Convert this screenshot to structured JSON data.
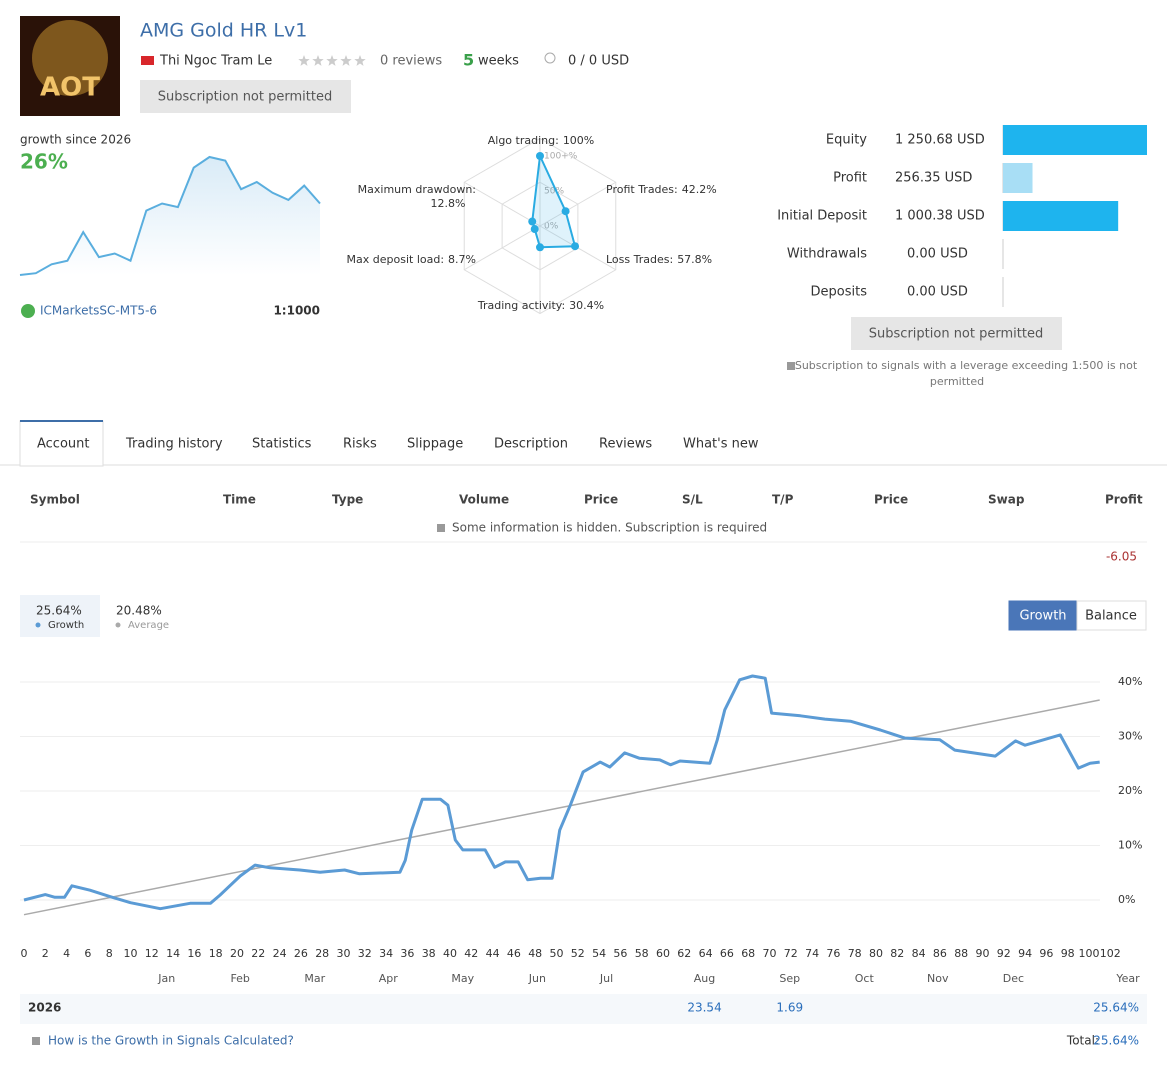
{
  "header": {
    "avatar_text": "AOT",
    "title": "AMG Gold HR Lv1",
    "author": "Thi Ngoc Tram Le",
    "reviews": "0 reviews",
    "weeks_value": "5",
    "weeks_unit": "weeks",
    "subscribers": "0 / 0 USD",
    "button": "Subscription not permitted"
  },
  "mini": {
    "label": "growth since 2026",
    "value": "26%",
    "values": [
      0,
      0.5,
      3,
      4,
      12,
      5,
      6,
      4,
      18,
      20,
      19,
      30,
      33,
      32,
      24,
      26,
      23,
      21,
      25,
      20
    ],
    "broker": "ICMarketsSC-MT5-6",
    "leverage": "1:1000"
  },
  "radar": {
    "axes": [
      {
        "name": "Algo trading:",
        "value": 100,
        "value_label": "100%"
      },
      {
        "name": "Profit Trades:",
        "value": 42.2,
        "value_label": "42.2%"
      },
      {
        "name": "Loss Trades:",
        "value": 57.8,
        "value_label": "57.8%"
      },
      {
        "name": "Trading activity:",
        "value": 30.4,
        "value_label": "30.4%"
      },
      {
        "name": "Max deposit load:",
        "value": 8.7,
        "value_label": "8.7%"
      },
      {
        "name": "Maximum drawdown:",
        "value": 12.8,
        "value_label": "12.8%"
      }
    ],
    "rings": [
      {
        "value": 100,
        "label": "100+%"
      },
      {
        "value": 50,
        "label": "50%"
      },
      {
        "value": 0,
        "label": "0%"
      }
    ]
  },
  "account": {
    "rows": [
      {
        "label": "Equity",
        "value": 1250.68,
        "value_label": "1 250.68 USD"
      },
      {
        "label": "Profit",
        "value": 256.35,
        "value_label": "256.35 USD"
      },
      {
        "label": "Initial Deposit",
        "value": 1000.38,
        "value_label": "1 000.38 USD"
      },
      {
        "label": "Withdrawals",
        "value": 0,
        "value_label": "0.00 USD"
      },
      {
        "label": "Deposits",
        "value": 0,
        "value_label": "0.00 USD"
      }
    ],
    "button": "Subscription not permitted",
    "note_lines": [
      "Subscription to signals with a leverage exceeding 1:500 is not",
      "permitted"
    ]
  },
  "tabs": [
    "Account",
    "Trading history",
    "Statistics",
    "Risks",
    "Slippage",
    "Description",
    "Reviews",
    "What's new"
  ],
  "active_tab": 0,
  "table": {
    "columns": [
      "Symbol",
      "Time",
      "Type",
      "Volume",
      "Price",
      "S/L",
      "T/P",
      "Price",
      "Swap",
      "Profit"
    ],
    "notice": "Some information is hidden. Subscription is required",
    "total_profit": -6.05
  },
  "chart_data": {
    "type": "line",
    "buttons": [
      "Growth",
      "Balance"
    ],
    "active_button": 0,
    "series": [
      {
        "name": "Growth",
        "legend_value": "25.64%",
        "color": "#5b9bd5",
        "x": [
          0,
          2,
          2.9,
          3.8,
          4.5,
          6.2,
          8.1,
          10,
          12.8,
          15.6,
          17.5,
          18.4,
          20.3,
          21.7,
          23.1,
          25.9,
          27.8,
          30.1,
          31.5,
          35.3,
          35.8,
          36.4,
          37.4,
          39.1,
          39.8,
          40.5,
          41.2,
          43.3,
          44.2,
          45.2,
          46.4,
          47.3,
          48.5,
          49.6,
          50.3,
          51.3,
          52.5,
          54.1,
          55,
          56.4,
          57.8,
          59.7,
          60.7,
          61.6,
          64.4,
          65.1,
          65.8,
          67.2,
          68.4,
          69.6,
          70.2,
          72.9,
          75.2,
          77.6,
          80.4,
          82.7,
          86,
          87.4,
          91.2,
          93.1,
          94,
          97.3,
          99,
          100.1,
          101
        ],
        "values": [
          0,
          1,
          0.5,
          0.5,
          2.6,
          1.8,
          0.6,
          -0.5,
          -1.6,
          -0.6,
          -0.6,
          0.9,
          4.4,
          6.4,
          5.9,
          5.5,
          5.1,
          5.5,
          4.8,
          5.1,
          7.3,
          12.8,
          18.5,
          18.5,
          17.4,
          11,
          9.2,
          9.2,
          6,
          7,
          7,
          3.7,
          4,
          4,
          12.8,
          17.4,
          23.5,
          25.3,
          24.4,
          27,
          26,
          25.7,
          24.8,
          25.5,
          25.1,
          29.4,
          34.9,
          40.4,
          41.1,
          40.7,
          34.3,
          33.8,
          33.2,
          32.8,
          31.2,
          29.7,
          29.4,
          27.5,
          26.4,
          29.2,
          28.4,
          30.3,
          24.2,
          25.1,
          25.3
        ]
      },
      {
        "name": "Average",
        "legend_value": "20.48%",
        "color": "#aaaaaa",
        "x": [
          0,
          101
        ],
        "values": [
          -2.7,
          36.7
        ]
      }
    ],
    "xlim": [
      0,
      102
    ],
    "xticks": [
      0,
      2,
      4,
      6,
      8,
      10,
      12,
      14,
      16,
      18,
      20,
      22,
      24,
      26,
      28,
      30,
      32,
      34,
      36,
      38,
      40,
      42,
      44,
      46,
      48,
      50,
      52,
      54,
      56,
      58,
      60,
      62,
      64,
      66,
      68,
      70,
      72,
      74,
      76,
      78,
      80,
      82,
      84,
      86,
      88,
      90,
      92,
      94,
      96,
      98,
      100,
      102
    ],
    "month_ticks": [
      {
        "value": 13.4,
        "label": "Jan"
      },
      {
        "value": 20.3,
        "label": "Feb"
      },
      {
        "value": 27.3,
        "label": "Mar"
      },
      {
        "value": 34.2,
        "label": "Apr"
      },
      {
        "value": 41.2,
        "label": "May"
      },
      {
        "value": 48.2,
        "label": "Jun"
      },
      {
        "value": 54.7,
        "label": "Jul"
      },
      {
        "value": 63.9,
        "label": "Aug"
      },
      {
        "value": 71.9,
        "label": "Sep"
      },
      {
        "value": 78.9,
        "label": "Oct"
      },
      {
        "value": 85.8,
        "label": "Nov"
      },
      {
        "value": 92.9,
        "label": "Dec"
      }
    ],
    "year_header": "Year",
    "ylim": [
      -6,
      46
    ],
    "yticks": [
      {
        "value": 0,
        "label": "0%"
      },
      {
        "value": 10,
        "label": "10%"
      },
      {
        "value": 20,
        "label": "20%"
      },
      {
        "value": 30,
        "label": "30%"
      },
      {
        "value": 40,
        "label": "40%"
      }
    ],
    "grid": true,
    "year_row": {
      "year": "2026",
      "months": [
        null,
        null,
        null,
        null,
        null,
        null,
        null,
        23.54,
        1.69,
        null,
        null,
        null
      ],
      "total_label": "25.64%"
    }
  },
  "footer": {
    "link": "How is the Growth in Signals Calculated?",
    "total_label": "Total:",
    "total_value": "25.64%"
  }
}
